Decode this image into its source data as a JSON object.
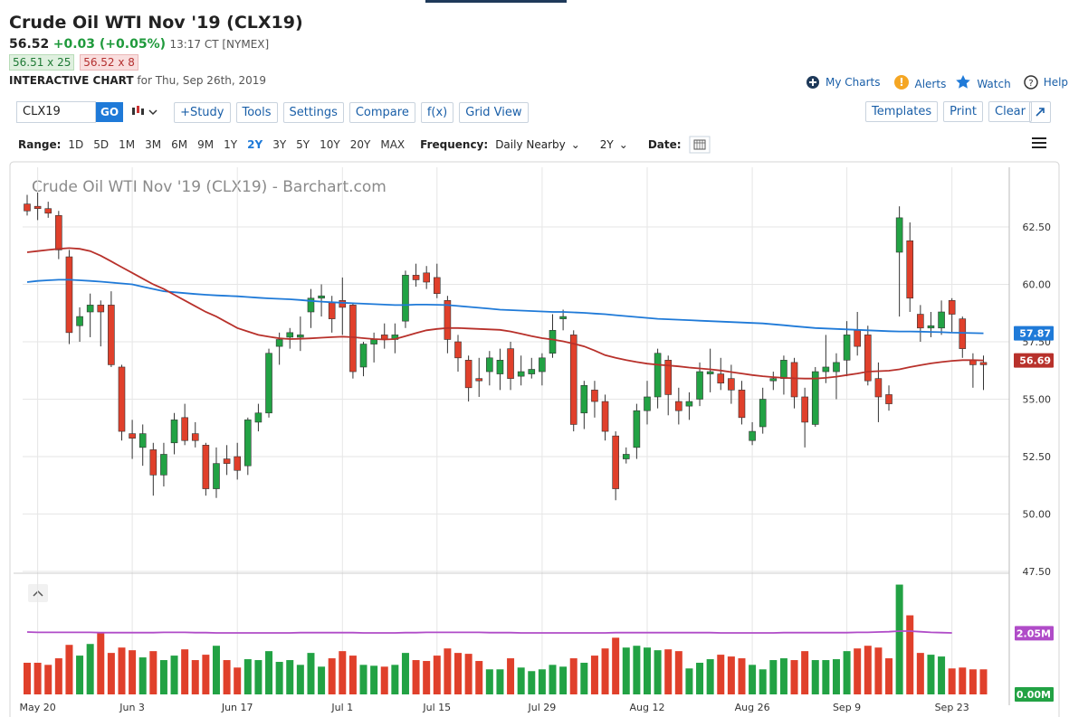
{
  "header": {
    "title": "Crude Oil WTI Nov '19 (CLX19)",
    "last": "56.52",
    "change": "+0.03 (+0.05%)",
    "time": "13:17 CT [NYMEX]",
    "bid": "56.51 x 25",
    "ask": "56.52 x 8",
    "chart_label": "INTERACTIVE CHART",
    "chart_date": "for Thu, Sep 26th, 2019"
  },
  "nav": [
    "My Charts",
    "Alerts",
    "Watch",
    "Help"
  ],
  "toolbar": {
    "symbol": "CLX19",
    "go": "GO",
    "buttons": [
      "+Study",
      "Tools",
      "Settings",
      "Compare",
      "f(x)",
      "Grid View"
    ],
    "right_buttons": [
      "Templates",
      "Print",
      "Clear"
    ]
  },
  "range_bar": {
    "label": "Range:",
    "ranges": [
      "1D",
      "5D",
      "1M",
      "3M",
      "6M",
      "9M",
      "1Y",
      "2Y",
      "3Y",
      "5Y",
      "10Y",
      "20Y",
      "MAX"
    ],
    "active": "2Y",
    "frequency_label": "Frequency:",
    "frequency": "Daily Nearby",
    "period": "2Y",
    "date_label": "Date:"
  },
  "chart_data": {
    "type": "candlestick",
    "title": "Crude Oil WTI Nov '19 (CLX19) - Barchart.com",
    "up_color": "#22a244",
    "down_color": "#e0402b",
    "grid": true,
    "categories": [
      null,
      "May 20",
      null,
      null,
      null,
      null,
      null,
      null,
      null,
      null,
      "Jun 3",
      null,
      null,
      null,
      null,
      null,
      null,
      null,
      null,
      null,
      "Jun 17",
      null,
      null,
      null,
      null,
      null,
      null,
      null,
      null,
      null,
      "Jul 1",
      null,
      null,
      null,
      null,
      null,
      null,
      null,
      null,
      "Jul 15",
      null,
      null,
      null,
      null,
      null,
      null,
      null,
      null,
      null,
      "Jul 29",
      null,
      null,
      null,
      null,
      null,
      null,
      null,
      null,
      null,
      "Aug 12",
      null,
      null,
      null,
      null,
      null,
      null,
      null,
      null,
      null,
      "Aug 26",
      null,
      null,
      null,
      null,
      null,
      null,
      null,
      null,
      "Sep 9",
      null,
      null,
      null,
      null,
      null,
      null,
      null,
      null,
      null,
      "Sep 23",
      null,
      null,
      null
    ],
    "open": [
      63.5,
      63.4,
      63.3,
      63.0,
      61.2,
      58.2,
      58.8,
      59.1,
      59.1,
      56.4,
      53.5,
      52.9,
      52.8,
      51.7,
      53.1,
      54.2,
      53.5,
      53.0,
      51.1,
      52.4,
      52.5,
      52.1,
      54.0,
      54.4,
      57.3,
      57.7,
      57.7,
      58.8,
      59.4,
      59.2,
      59.3,
      59.1,
      56.4,
      57.4,
      57.8,
      57.6,
      58.4,
      60.4,
      60.5,
      60.3,
      59.3,
      57.5,
      56.7,
      55.9,
      56.2,
      56.1,
      57.2,
      56.0,
      56.1,
      56.2,
      57.0,
      58.5,
      57.8,
      54.4,
      55.4,
      54.9,
      53.4,
      52.4,
      52.9,
      54.5,
      55.1,
      56.7,
      54.9,
      54.7,
      55.0,
      56.1,
      56.1,
      55.9,
      55.4,
      53.2,
      53.8,
      55.8,
      55.9,
      56.6,
      55.1,
      53.9,
      56.2,
      56.2,
      56.7,
      58.0,
      57.8,
      55.9,
      55.2,
      61.4,
      61.9,
      58.7,
      58.1,
      58.1,
      59.3,
      58.5,
      56.7,
      56.6
    ],
    "high": [
      63.9,
      64.0,
      63.6,
      63.2,
      61.5,
      59.0,
      59.6,
      59.3,
      59.7,
      56.5,
      54.1,
      53.9,
      53.1,
      53.1,
      54.4,
      54.8,
      54.0,
      53.1,
      52.9,
      53.0,
      53.1,
      54.2,
      54.8,
      57.2,
      57.9,
      58.1,
      58.6,
      59.8,
      60.0,
      59.5,
      60.3,
      59.2,
      57.5,
      57.9,
      58.3,
      58.3,
      60.6,
      60.9,
      60.8,
      60.9,
      59.5,
      57.8,
      56.9,
      56.8,
      57.1,
      57.2,
      57.5,
      56.9,
      56.8,
      57.0,
      58.7,
      58.9,
      58.0,
      55.8,
      55.8,
      55.2,
      53.6,
      52.9,
      54.8,
      55.8,
      57.2,
      56.9,
      55.5,
      55.3,
      56.6,
      57.2,
      56.8,
      56.5,
      55.8,
      54.0,
      55.5,
      56.2,
      56.9,
      56.8,
      55.5,
      56.4,
      57.8,
      57.0,
      58.4,
      58.8,
      58.2,
      56.6,
      55.6,
      63.4,
      62.7,
      59.1,
      58.8,
      59.3,
      59.4,
      58.6,
      57.0,
      56.9
    ],
    "low": [
      63.0,
      62.8,
      62.9,
      61.1,
      57.4,
      57.5,
      57.7,
      57.3,
      56.4,
      53.2,
      52.4,
      52.1,
      50.8,
      51.2,
      52.6,
      53.0,
      52.9,
      50.8,
      50.7,
      51.7,
      51.5,
      51.7,
      53.6,
      54.2,
      56.5,
      57.2,
      57.1,
      58.1,
      58.6,
      57.9,
      57.8,
      55.9,
      56.0,
      56.6,
      57.2,
      57.0,
      58.1,
      59.9,
      59.8,
      59.4,
      57.0,
      56.2,
      54.9,
      55.1,
      55.6,
      55.4,
      55.4,
      55.6,
      55.9,
      55.6,
      56.8,
      58.0,
      53.6,
      53.7,
      54.2,
      53.2,
      50.6,
      52.2,
      52.4,
      53.9,
      54.6,
      54.3,
      53.9,
      54.1,
      54.7,
      55.3,
      55.4,
      54.8,
      53.9,
      53.0,
      53.5,
      55.4,
      55.2,
      54.6,
      52.9,
      53.8,
      55.7,
      55.0,
      56.0,
      56.9,
      55.6,
      54.0,
      54.5,
      58.6,
      58.8,
      57.5,
      57.7,
      57.8,
      57.9,
      56.8,
      55.5,
      55.4
    ],
    "close": [
      63.2,
      63.3,
      63.1,
      61.5,
      57.9,
      58.6,
      59.1,
      58.8,
      56.5,
      53.6,
      53.3,
      53.5,
      51.7,
      52.6,
      54.1,
      53.2,
      53.2,
      51.1,
      52.2,
      52.2,
      51.9,
      54.1,
      54.4,
      57.0,
      57.6,
      57.9,
      57.8,
      59.4,
      59.5,
      58.5,
      59.0,
      56.2,
      57.4,
      57.6,
      57.6,
      57.8,
      60.4,
      60.2,
      60.1,
      59.6,
      57.6,
      56.8,
      55.5,
      55.8,
      56.8,
      56.7,
      55.9,
      56.2,
      56.3,
      56.8,
      58.0,
      58.6,
      53.9,
      55.6,
      54.9,
      53.6,
      51.1,
      52.6,
      54.5,
      55.1,
      57.0,
      55.2,
      54.5,
      54.9,
      56.2,
      56.2,
      55.7,
      55.4,
      54.2,
      53.6,
      55.0,
      55.9,
      56.7,
      55.1,
      54.0,
      56.2,
      56.4,
      56.6,
      57.8,
      57.3,
      55.8,
      55.1,
      54.8,
      62.9,
      59.4,
      58.1,
      58.2,
      58.8,
      58.7,
      57.2,
      56.5,
      56.5
    ],
    "ylim": [
      47.5,
      65.1
    ],
    "yticks": [
      {
        "value": 47.5,
        "label": "47.50"
      },
      {
        "value": 50,
        "label": "50.00"
      },
      {
        "value": 52.5,
        "label": "52.50"
      },
      {
        "value": 55,
        "label": "55.00"
      },
      {
        "value": 57.5,
        "label": "57.50"
      },
      {
        "value": 60,
        "label": "60.00"
      },
      {
        "value": 62.5,
        "label": "62.50"
      }
    ],
    "moving_averages": [
      {
        "color": "#1f7ad8",
        "values": [
          60.1,
          60.15,
          60.18,
          60.2,
          60.2,
          60.18,
          60.15,
          60.12,
          60.08,
          60.04,
          60.0,
          59.9,
          59.8,
          59.7,
          59.66,
          59.62,
          59.58,
          59.55,
          59.52,
          59.5,
          59.48,
          59.45,
          59.42,
          59.39,
          59.37,
          59.35,
          59.32,
          59.28,
          59.25,
          59.22,
          59.2,
          59.18,
          59.16,
          59.14,
          59.12,
          59.1,
          59.1,
          59.12,
          59.12,
          59.11,
          59.1,
          59.06,
          59.02,
          58.98,
          58.94,
          58.9,
          58.88,
          58.86,
          58.84,
          58.82,
          58.8,
          58.8,
          58.78,
          58.76,
          58.73,
          58.7,
          58.66,
          58.62,
          58.58,
          58.54,
          58.5,
          58.48,
          58.46,
          58.44,
          58.42,
          58.4,
          58.38,
          58.36,
          58.34,
          58.32,
          58.3,
          58.26,
          58.22,
          58.18,
          58.14,
          58.1,
          58.08,
          58.06,
          58.04,
          58.02,
          58.0,
          57.98,
          57.96,
          57.95,
          57.95,
          57.94,
          57.93,
          57.92,
          57.9,
          57.89,
          57.88,
          57.87
        ]
      },
      {
        "color": "#b8312b",
        "values": [
          61.4,
          61.45,
          61.5,
          61.55,
          61.58,
          61.55,
          61.45,
          61.25,
          61.0,
          60.75,
          60.5,
          60.25,
          60.0,
          59.8,
          59.55,
          59.3,
          59.05,
          58.8,
          58.6,
          58.35,
          58.1,
          57.95,
          57.8,
          57.72,
          57.65,
          57.62,
          57.63,
          57.65,
          57.68,
          57.7,
          57.72,
          57.7,
          57.66,
          57.62,
          57.6,
          57.62,
          57.75,
          57.88,
          58.0,
          58.06,
          58.1,
          58.1,
          58.08,
          58.06,
          58.04,
          58.02,
          57.95,
          57.85,
          57.75,
          57.66,
          57.6,
          57.52,
          57.42,
          57.3,
          57.12,
          56.92,
          56.8,
          56.7,
          56.62,
          56.55,
          56.5,
          56.47,
          56.43,
          56.38,
          56.34,
          56.3,
          56.25,
          56.18,
          56.12,
          56.05,
          56.0,
          55.96,
          55.93,
          55.91,
          55.9,
          55.9,
          55.93,
          55.98,
          56.05,
          56.12,
          56.2,
          56.22,
          56.24,
          56.3,
          56.4,
          56.48,
          56.56,
          56.62,
          56.67,
          56.7,
          56.7,
          56.69
        ]
      }
    ],
    "volume": {
      "ylim": [
        0,
        4.0
      ],
      "yticks": [
        {
          "value": 2.05,
          "label": "2.05M"
        },
        {
          "value": 0,
          "label": "0.00M"
        }
      ],
      "tick_colors": [
        "#b04cc8",
        "#22a244"
      ],
      "values": [
        1.06,
        1.06,
        0.99,
        1.21,
        1.66,
        1.3,
        1.69,
        2.08,
        1.39,
        1.57,
        1.48,
        1.24,
        1.45,
        1.15,
        1.3,
        1.51,
        1.15,
        1.33,
        1.63,
        1.15,
        0.9,
        1.18,
        1.15,
        1.45,
        1.09,
        1.15,
        0.99,
        1.39,
        0.93,
        1.21,
        1.45,
        1.3,
        0.99,
        0.96,
        0.93,
        0.99,
        1.39,
        1.15,
        1.12,
        1.3,
        1.54,
        1.39,
        1.36,
        1.12,
        0.84,
        0.84,
        1.21,
        0.9,
        0.78,
        0.84,
        0.99,
        0.93,
        1.21,
        1.06,
        1.3,
        1.54,
        1.9,
        1.57,
        1.63,
        1.57,
        1.48,
        1.51,
        1.45,
        0.87,
        1.06,
        1.18,
        1.33,
        1.27,
        1.21,
        0.99,
        0.84,
        1.15,
        1.21,
        1.15,
        1.45,
        1.15,
        1.15,
        1.18,
        1.45,
        1.54,
        1.63,
        1.57,
        1.21,
        3.68,
        2.65,
        1.39,
        1.33,
        1.27,
        0.87,
        0.9,
        0.84,
        0.84
      ],
      "ma_color": "#b04cc8",
      "ma": [
        2.09,
        2.08,
        2.08,
        2.08,
        2.08,
        2.08,
        2.08,
        2.07,
        2.07,
        2.07,
        2.07,
        2.07,
        2.07,
        2.08,
        2.08,
        2.08,
        2.07,
        2.07,
        2.06,
        2.06,
        2.06,
        2.06,
        2.06,
        2.06,
        2.06,
        2.06,
        2.07,
        2.07,
        2.07,
        2.07,
        2.07,
        2.07,
        2.06,
        2.06,
        2.06,
        2.06,
        2.07,
        2.07,
        2.08,
        2.08,
        2.08,
        2.08,
        2.08,
        2.08,
        2.07,
        2.07,
        2.07,
        2.06,
        2.06,
        2.06,
        2.06,
        2.06,
        2.06,
        2.06,
        2.06,
        2.06,
        2.07,
        2.07,
        2.07,
        2.07,
        2.07,
        2.07,
        2.07,
        2.07,
        2.07,
        2.07,
        2.06,
        2.06,
        2.06,
        2.06,
        2.06,
        2.06,
        2.07,
        2.07,
        2.07,
        2.07,
        2.07,
        2.07,
        2.07,
        2.08,
        2.08,
        2.09,
        2.1,
        2.12,
        2.12,
        2.1,
        2.08,
        2.07,
        2.06,
        null,
        null,
        null
      ]
    }
  }
}
